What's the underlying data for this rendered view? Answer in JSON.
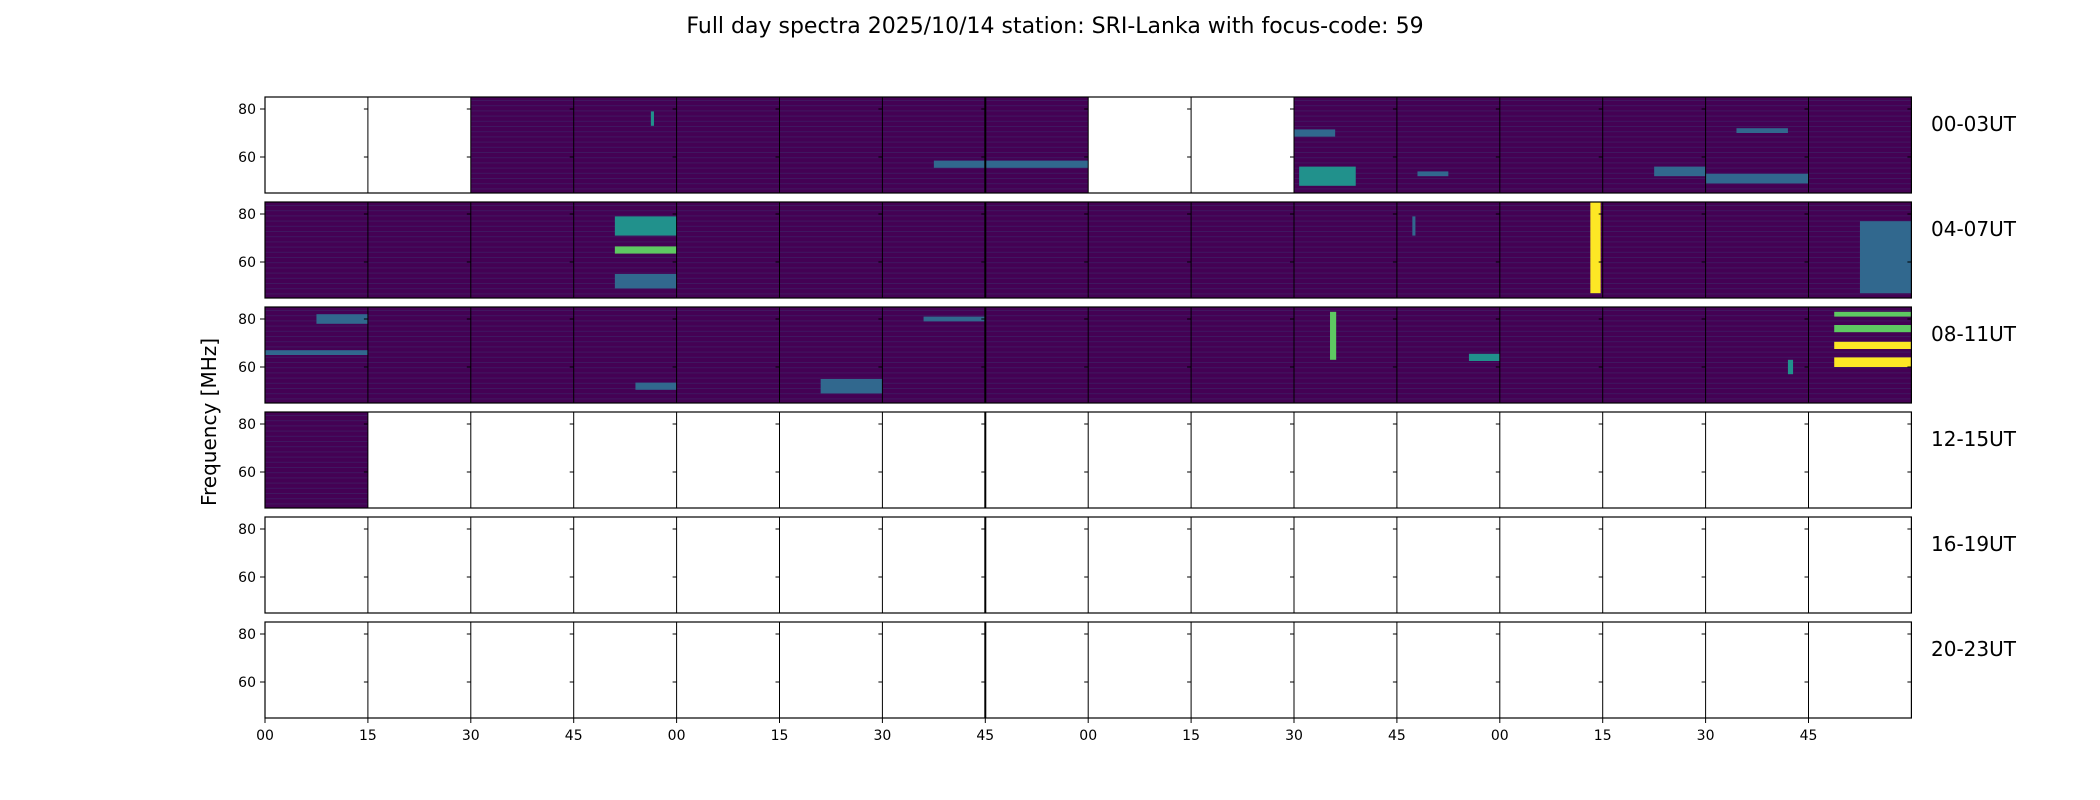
{
  "chart_data": {
    "type": "heatmap",
    "title": "Full day spectra 2025/10/14 station: SRI-Lanka with focus-code: 59",
    "ylabel": "Frequency [MHz]",
    "xlabel": "",
    "ylim": [
      45,
      85
    ],
    "y_ticks": [
      "80",
      "60"
    ],
    "y_tick_values": [
      80,
      60
    ],
    "x_tick_labels": [
      "00",
      "15",
      "30",
      "45",
      "00",
      "15",
      "30",
      "45",
      "00",
      "15",
      "30",
      "45",
      "00",
      "15",
      "30",
      "45"
    ],
    "colormap": "viridis",
    "colors": {
      "background": "#440154",
      "empty": "#ffffff",
      "frame": "#000000",
      "mid": "#31688e",
      "teal": "#21918c",
      "green": "#5ec962",
      "yellow": "#fde725"
    },
    "rows": [
      {
        "label": "00-03UT",
        "segments": [
          {
            "data": false
          },
          {
            "data": false
          },
          {
            "data": true,
            "lines": []
          },
          {
            "data": true,
            "lines": [
              {
                "f": 76,
                "x": 0.75,
                "w": 0.03,
                "h": 6,
                "c": "teal"
              }
            ]
          },
          {
            "data": true,
            "lines": []
          },
          {
            "data": true,
            "lines": []
          },
          {
            "data": true,
            "lines": [
              {
                "f": 57,
                "x": 0.5,
                "w": 0.5,
                "h": 3,
                "c": "mid"
              }
            ]
          },
          {
            "data": true,
            "lines": [
              {
                "f": 57,
                "x": 0,
                "w": 1,
                "h": 3,
                "c": "mid"
              }
            ]
          },
          {
            "data": false
          },
          {
            "data": false
          },
          {
            "data": true,
            "lines": [
              {
                "f": 52,
                "x": 0.05,
                "w": 0.55,
                "h": 8,
                "c": "teal"
              },
              {
                "f": 70,
                "x": 0.0,
                "w": 0.4,
                "h": 3,
                "c": "mid"
              }
            ]
          },
          {
            "data": true,
            "lines": [
              {
                "f": 53,
                "x": 0.2,
                "w": 0.3,
                "h": 2,
                "c": "mid"
              }
            ]
          },
          {
            "data": true,
            "lines": []
          },
          {
            "data": true,
            "lines": [
              {
                "f": 54,
                "x": 0.5,
                "w": 0.5,
                "h": 4,
                "c": "mid"
              }
            ]
          },
          {
            "data": true,
            "lines": [
              {
                "f": 51,
                "x": 0,
                "w": 1,
                "h": 4,
                "c": "mid"
              },
              {
                "f": 71,
                "x": 0.3,
                "w": 0.5,
                "h": 2,
                "c": "mid"
              }
            ]
          },
          {
            "data": true,
            "lines": []
          }
        ]
      },
      {
        "label": "04-07UT",
        "segments": [
          {
            "data": true,
            "lines": []
          },
          {
            "data": true,
            "lines": []
          },
          {
            "data": true,
            "lines": []
          },
          {
            "data": true,
            "lines": [
              {
                "f": 65,
                "x": 0.4,
                "w": 0.6,
                "h": 3,
                "c": "green"
              },
              {
                "f": 75,
                "x": 0.4,
                "w": 0.6,
                "h": 8,
                "c": "teal"
              },
              {
                "f": 52,
                "x": 0.4,
                "w": 0.6,
                "h": 6,
                "c": "mid"
              }
            ]
          },
          {
            "data": true,
            "lines": []
          },
          {
            "data": true,
            "lines": []
          },
          {
            "data": true,
            "lines": []
          },
          {
            "data": true,
            "lines": []
          },
          {
            "data": true,
            "lines": []
          },
          {
            "data": true,
            "lines": []
          },
          {
            "data": true,
            "lines": []
          },
          {
            "data": true,
            "lines": [
              {
                "f": 75,
                "x": 0.15,
                "w": 0.03,
                "h": 8,
                "c": "mid"
              }
            ]
          },
          {
            "data": true,
            "lines": [
              {
                "f": 66,
                "x": 0.88,
                "w": 0.1,
                "h": 38,
                "c": "yellow"
              }
            ]
          },
          {
            "data": true,
            "lines": []
          },
          {
            "data": true,
            "lines": []
          },
          {
            "data": true,
            "lines": [
              {
                "f": 62,
                "x": 0.5,
                "w": 0.5,
                "h": 30,
                "c": "mid"
              }
            ]
          }
        ]
      },
      {
        "label": "08-11UT",
        "segments": [
          {
            "data": true,
            "lines": [
              {
                "f": 66,
                "x": 0,
                "w": 1,
                "h": 2,
                "c": "mid"
              },
              {
                "f": 80,
                "x": 0.5,
                "w": 0.5,
                "h": 4,
                "c": "mid"
              }
            ]
          },
          {
            "data": true,
            "lines": []
          },
          {
            "data": true,
            "lines": []
          },
          {
            "data": true,
            "lines": [
              {
                "f": 52,
                "x": 0.6,
                "w": 0.4,
                "h": 3,
                "c": "mid"
              }
            ]
          },
          {
            "data": true,
            "lines": []
          },
          {
            "data": true,
            "lines": [
              {
                "f": 52,
                "x": 0.4,
                "w": 0.6,
                "h": 6,
                "c": "mid"
              }
            ]
          },
          {
            "data": true,
            "lines": [
              {
                "f": 80,
                "x": 0.4,
                "w": 0.6,
                "h": 2,
                "c": "mid"
              }
            ]
          },
          {
            "data": true,
            "lines": []
          },
          {
            "data": true,
            "lines": []
          },
          {
            "data": true,
            "lines": []
          },
          {
            "data": true,
            "lines": [
              {
                "f": 73,
                "x": 0.35,
                "w": 0.06,
                "h": 20,
                "c": "green"
              }
            ]
          },
          {
            "data": true,
            "lines": [
              {
                "f": 64,
                "x": 0.7,
                "w": 0.3,
                "h": 3,
                "c": "teal"
              }
            ]
          },
          {
            "data": true,
            "lines": []
          },
          {
            "data": true,
            "lines": []
          },
          {
            "data": true,
            "lines": [
              {
                "f": 60,
                "x": 0.8,
                "w": 0.05,
                "h": 6,
                "c": "teal"
              }
            ]
          },
          {
            "data": true,
            "lines": [
              {
                "f": 82,
                "x": 0.25,
                "w": 0.75,
                "h": 2,
                "c": "green"
              },
              {
                "f": 76,
                "x": 0.25,
                "w": 0.75,
                "h": 3,
                "c": "green"
              },
              {
                "f": 69,
                "x": 0.25,
                "w": 0.75,
                "h": 3,
                "c": "yellow"
              },
              {
                "f": 62,
                "x": 0.25,
                "w": 0.75,
                "h": 4,
                "c": "yellow"
              }
            ]
          }
        ]
      },
      {
        "label": "12-15UT",
        "segments": [
          {
            "data": true,
            "lines": []
          },
          {
            "data": false
          },
          {
            "data": false
          },
          {
            "data": false
          },
          {
            "data": false
          },
          {
            "data": false
          },
          {
            "data": false
          },
          {
            "data": false
          },
          {
            "data": false
          },
          {
            "data": false
          },
          {
            "data": false
          },
          {
            "data": false
          },
          {
            "data": false
          },
          {
            "data": false
          },
          {
            "data": false
          },
          {
            "data": false
          }
        ]
      },
      {
        "label": "16-19UT",
        "segments": [
          {
            "data": false
          },
          {
            "data": false
          },
          {
            "data": false
          },
          {
            "data": false
          },
          {
            "data": false
          },
          {
            "data": false
          },
          {
            "data": false
          },
          {
            "data": false
          },
          {
            "data": false
          },
          {
            "data": false
          },
          {
            "data": false
          },
          {
            "data": false
          },
          {
            "data": false
          },
          {
            "data": false
          },
          {
            "data": false
          },
          {
            "data": false
          }
        ]
      },
      {
        "label": "20-23UT",
        "segments": [
          {
            "data": false
          },
          {
            "data": false
          },
          {
            "data": false
          },
          {
            "data": false
          },
          {
            "data": false
          },
          {
            "data": false
          },
          {
            "data": false
          },
          {
            "data": false
          },
          {
            "data": false
          },
          {
            "data": false
          },
          {
            "data": false
          },
          {
            "data": false
          },
          {
            "data": false
          },
          {
            "data": false
          },
          {
            "data": false
          },
          {
            "data": false
          }
        ]
      }
    ]
  }
}
